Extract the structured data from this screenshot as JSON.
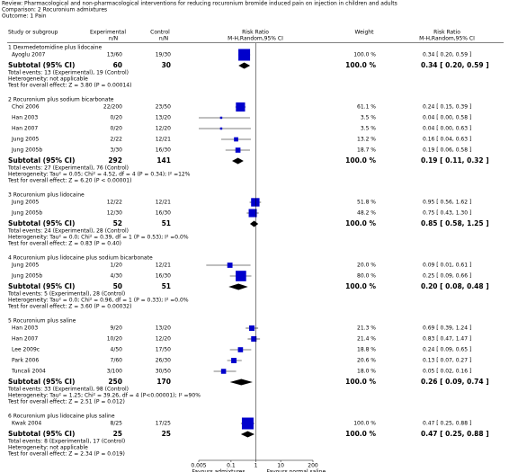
{
  "header": {
    "review": "Review:   Pharmacological and non-pharmacological interventions for reducing rocuronium bromide induced pain on injection in children and adults",
    "comparison": "Comparison:   2 Rocuronium admixtures",
    "outcome": "Outcome:   1 Pain"
  },
  "chart_data": {
    "type": "forest",
    "columns": {
      "study": "Study or subgroup",
      "experimental": [
        "Experimental",
        "n/N"
      ],
      "control": [
        "Control",
        "n/N"
      ],
      "plot": [
        "Risk Ratio",
        "M-H,Random,95% CI"
      ],
      "weight": "Weight",
      "effect": [
        "Risk Ratio",
        "M-H,Random,95% CI"
      ]
    },
    "xlim": [
      0.005,
      200
    ],
    "xticks": [
      0.005,
      0.1,
      1,
      10,
      200
    ],
    "log": true,
    "color": "#0000cc",
    "xlabels": {
      "left": "Favours admixtures",
      "right": "Favours normal saline"
    },
    "groups": [
      {
        "title": "1 Dexmedetomidine plus lidocaine",
        "studies": [
          {
            "name": "Ayoglu 2007",
            "experimental": "13/60",
            "control": "19/30",
            "rr": 0.34,
            "lo": 0.2,
            "hi": 0.59,
            "weight": 100.0,
            "weight_label": "100.0 %",
            "effect_label": "0.34 [ 0.20, 0.59 ]"
          }
        ],
        "subtotal": {
          "label": "Subtotal (95% CI)",
          "experimental": 60,
          "control": 30,
          "rr": 0.34,
          "lo": 0.2,
          "hi": 0.59,
          "weight_label": "100.0 %",
          "effect_label": "0.34 [ 0.20, 0.59 ]"
        },
        "total_events": "Total events: 13 (Experimental), 19 (Control)",
        "heterogeneity": "Heterogeneity: not applicable",
        "test": "Test for overall effect: Z = 3.80 (P = 0.00014)"
      },
      {
        "title": "2 Rocuronium plus sodium bicarbonate",
        "studies": [
          {
            "name": "Choi 2006",
            "experimental": "22/200",
            "control": "23/50",
            "rr": 0.24,
            "lo": 0.15,
            "hi": 0.39,
            "weight": 61.1,
            "weight_label": "61.1 %",
            "effect_label": "0.24 [ 0.15, 0.39 ]"
          },
          {
            "name": "Han 2003",
            "experimental": "0/20",
            "control": "13/20",
            "rr": 0.04,
            "lo": 0.0,
            "hi": 0.58,
            "weight": 3.5,
            "weight_label": "3.5 %",
            "effect_label": "0.04 [ 0.00, 0.58 ]"
          },
          {
            "name": "Han 2007",
            "experimental": "0/20",
            "control": "12/20",
            "rr": 0.04,
            "lo": 0.0,
            "hi": 0.63,
            "weight": 3.5,
            "weight_label": "3.5 %",
            "effect_label": "0.04 [ 0.00, 0.63 ]"
          },
          {
            "name": "Jung 2005",
            "experimental": "2/22",
            "control": "12/21",
            "rr": 0.16,
            "lo": 0.04,
            "hi": 0.63,
            "weight": 13.2,
            "weight_label": "13.2 %",
            "effect_label": "0.16 [ 0.04, 0.63 ]"
          },
          {
            "name": "Jung 2005b",
            "experimental": "3/30",
            "control": "16/30",
            "rr": 0.19,
            "lo": 0.06,
            "hi": 0.58,
            "weight": 18.7,
            "weight_label": "18.7 %",
            "effect_label": "0.19 [ 0.06, 0.58 ]"
          }
        ],
        "subtotal": {
          "label": "Subtotal (95% CI)",
          "experimental": 292,
          "control": 141,
          "rr": 0.19,
          "lo": 0.11,
          "hi": 0.32,
          "weight_label": "100.0 %",
          "effect_label": "0.19 [ 0.11, 0.32 ]"
        },
        "total_events": "Total events: 27 (Experimental), 76 (Control)",
        "heterogeneity": "Heterogeneity: Tau² = 0.05; Chi² = 4.52, df = 4 (P = 0.34); I² =12%",
        "test": "Test for overall effect: Z = 6.20 (P < 0.00001)"
      },
      {
        "title": "3 Rocuronium plus lidocaine",
        "studies": [
          {
            "name": "Jung 2005",
            "experimental": "12/22",
            "control": "12/21",
            "rr": 0.95,
            "lo": 0.56,
            "hi": 1.62,
            "weight": 51.8,
            "weight_label": "51.8 %",
            "effect_label": "0.95 [ 0.56, 1.62 ]"
          },
          {
            "name": "Jung 2005b",
            "experimental": "12/30",
            "control": "16/30",
            "rr": 0.75,
            "lo": 0.43,
            "hi": 1.3,
            "weight": 48.2,
            "weight_label": "48.2 %",
            "effect_label": "0.75 [ 0.43, 1.30 ]"
          }
        ],
        "subtotal": {
          "label": "Subtotal (95% CI)",
          "experimental": 52,
          "control": 51,
          "rr": 0.85,
          "lo": 0.58,
          "hi": 1.25,
          "weight_label": "100.0 %",
          "effect_label": "0.85 [ 0.58, 1.25 ]"
        },
        "total_events": "Total events: 24 (Experimental), 28 (Control)",
        "heterogeneity": "Heterogeneity: Tau² = 0.0; Chi² = 0.39, df = 1 (P = 0.53); I² =0.0%",
        "test": "Test for overall effect: Z = 0.83 (P = 0.40)"
      },
      {
        "title": "4 Rocuronium plus lidocaine plus sodium bicarbonate",
        "studies": [
          {
            "name": "Jung 2005",
            "experimental": "1/20",
            "control": "12/21",
            "rr": 0.09,
            "lo": 0.01,
            "hi": 0.61,
            "weight": 20.0,
            "weight_label": "20.0 %",
            "effect_label": "0.09 [ 0.01, 0.61 ]"
          },
          {
            "name": "Jung 2005b",
            "experimental": "4/30",
            "control": "16/30",
            "rr": 0.25,
            "lo": 0.09,
            "hi": 0.66,
            "weight": 80.0,
            "weight_label": "80.0 %",
            "effect_label": "0.25 [ 0.09, 0.66 ]"
          }
        ],
        "subtotal": {
          "label": "Subtotal (95% CI)",
          "experimental": 50,
          "control": 51,
          "rr": 0.2,
          "lo": 0.08,
          "hi": 0.48,
          "weight_label": "100.0 %",
          "effect_label": "0.20 [ 0.08, 0.48 ]"
        },
        "total_events": "Total events: 5 (Experimental), 28 (Control)",
        "heterogeneity": "Heterogeneity: Tau² = 0.0; Chi² = 0.96, df = 1 (P = 0.33); I² =0.0%",
        "test": "Test for overall effect: Z = 3.60 (P = 0.00032)"
      },
      {
        "title": "5 Rocuronium plus saline",
        "studies": [
          {
            "name": "Han 2003",
            "experimental": "9/20",
            "control": "13/20",
            "rr": 0.69,
            "lo": 0.39,
            "hi": 1.24,
            "weight": 21.3,
            "weight_label": "21.3 %",
            "effect_label": "0.69 [ 0.39, 1.24 ]"
          },
          {
            "name": "Han 2007",
            "experimental": "10/20",
            "control": "12/20",
            "rr": 0.83,
            "lo": 0.47,
            "hi": 1.47,
            "weight": 21.4,
            "weight_label": "21.4 %",
            "effect_label": "0.83 [ 0.47, 1.47 ]"
          },
          {
            "name": "Lee 2009c",
            "experimental": "4/50",
            "control": "17/50",
            "rr": 0.24,
            "lo": 0.09,
            "hi": 0.65,
            "weight": 18.8,
            "weight_label": "18.8 %",
            "effect_label": "0.24 [ 0.09, 0.65 ]"
          },
          {
            "name": "Park 2006",
            "experimental": "7/60",
            "control": "26/30",
            "rr": 0.13,
            "lo": 0.07,
            "hi": 0.27,
            "weight": 20.6,
            "weight_label": "20.6 %",
            "effect_label": "0.13 [ 0.07, 0.27 ]"
          },
          {
            "name": "Tuncali 2004",
            "experimental": "3/100",
            "control": "30/50",
            "rr": 0.05,
            "lo": 0.02,
            "hi": 0.16,
            "weight": 18.0,
            "weight_label": "18.0 %",
            "effect_label": "0.05 [ 0.02, 0.16 ]"
          }
        ],
        "subtotal": {
          "label": "Subtotal (95% CI)",
          "experimental": 250,
          "control": 170,
          "rr": 0.26,
          "lo": 0.09,
          "hi": 0.74,
          "weight_label": "100.0 %",
          "effect_label": "0.26 [ 0.09, 0.74 ]"
        },
        "total_events": "Total events: 33 (Experimental), 98 (Control)",
        "heterogeneity": "Heterogeneity: Tau² = 1.25; Chi² = 39.26, df = 4 (P<0.00001); I² =90%",
        "test": "Test for overall effect: Z = 2.51 (P = 0.012)"
      },
      {
        "title": "6 Rocuronium plus lidocaine plus saline",
        "studies": [
          {
            "name": "Kwak 2004",
            "experimental": "8/25",
            "control": "17/25",
            "rr": 0.47,
            "lo": 0.25,
            "hi": 0.88,
            "weight": 100.0,
            "weight_label": "100.0 %",
            "effect_label": "0.47 [ 0.25, 0.88 ]"
          }
        ],
        "subtotal": {
          "label": "Subtotal (95% CI)",
          "experimental": 25,
          "control": 25,
          "rr": 0.47,
          "lo": 0.25,
          "hi": 0.88,
          "weight_label": "100.0 %",
          "effect_label": "0.47 [ 0.25, 0.88 ]"
        },
        "total_events": "Total events: 8 (Experimental), 17 (Control)",
        "heterogeneity": "Heterogeneity: not applicable",
        "test": "Test for overall effect: Z = 2.34 (P = 0.019)"
      }
    ]
  }
}
